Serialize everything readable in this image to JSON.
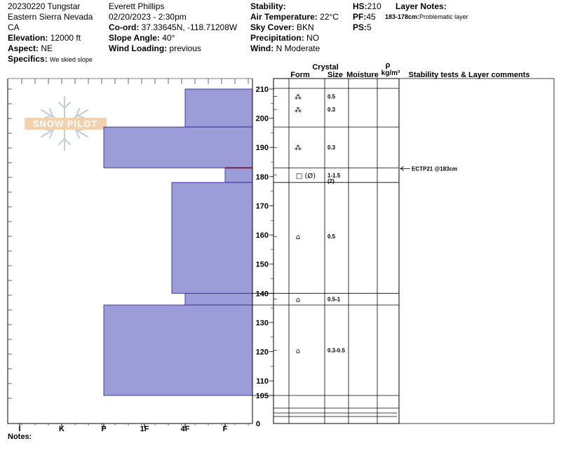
{
  "header": {
    "col1": {
      "line1": "20230220 Tungstar",
      "line2": "Eastern Sierra Nevada",
      "line3": "CA",
      "elevation_label": "Elevation:",
      "elevation_value": "12000 ft",
      "aspect_label": "Aspect:",
      "aspect_value": "NE",
      "specifics_label": "Specifics:",
      "specifics_value": "We skied slope"
    },
    "col2": {
      "observer": "Everett Phillips",
      "datetime": "02/20/2023 - 2:30pm",
      "coord_label": "Co-ord:",
      "coord_value": "37.33645N, -118.71208W",
      "slope_label": "Slope Angle:",
      "slope_value": "40°",
      "wind_loading_label": "Wind Loading:",
      "wind_loading_value": "previous"
    },
    "col3": {
      "stability_label": "Stability:",
      "stability_value": "",
      "air_temp_label": "Air Temperature:",
      "air_temp_value": "22°C",
      "sky_label": "Sky Cover:",
      "sky_value": "BKN",
      "precip_label": "Precipitation:",
      "precip_value": "NO",
      "wind_label": "Wind:",
      "wind_value": "N Moderate"
    },
    "col4": {
      "hs_label": "HS:",
      "hs_value": "210",
      "pf_label": "PF:",
      "pf_value": "45",
      "ps_label": "PS:",
      "ps_value": "5"
    },
    "layer_notes": {
      "title": "Layer Notes:",
      "note_range": "183-178cm:",
      "note_text": "Problematic layer"
    }
  },
  "table_headers": {
    "crystal": "Crystal",
    "form": "Form",
    "size": "Size",
    "moisture": "Moisture",
    "rho": "ρ",
    "density_unit": "kg/m³",
    "comments": "Stability tests & Layer comments"
  },
  "logo_text": "SNOW PILOT",
  "notes_label": "Notes:",
  "colors": {
    "layer_fill": "#9c9cd8",
    "layer_stroke": "#1e1e8c",
    "crust_line": "#8b1a3a",
    "test_arrow": "#000000"
  },
  "chart_data": {
    "type": "bar",
    "title": "",
    "xlabel": "",
    "ylabel": "",
    "hardness_scale": [
      "I",
      "K",
      "P",
      "1F",
      "4F",
      "F"
    ],
    "hardness_axis_note": "hardness increases to the left; F at right edge",
    "ylim": [
      100,
      212
    ],
    "y_ticks": [
      105,
      110,
      120,
      130,
      140,
      150,
      160,
      170,
      180,
      190,
      200,
      210
    ],
    "bottom_label": "0",
    "layers": [
      {
        "top": 210,
        "bottom": 197,
        "hardness": "4F"
      },
      {
        "top": 197,
        "bottom": 183,
        "hardness": "P"
      },
      {
        "top": 183,
        "bottom": 178,
        "hardness": "F+"
      },
      {
        "top": 178,
        "bottom": 140,
        "hardness": "4F+"
      },
      {
        "top": 140,
        "bottom": 136,
        "hardness": "4F"
      },
      {
        "top": 136,
        "bottom": 105,
        "hardness": "P"
      }
    ],
    "crust_line_at": 183,
    "crystals": [
      {
        "height": 207.5,
        "form": "⁂",
        "size": "0.5"
      },
      {
        "height": 203,
        "form": "⁂",
        "size": "0.3"
      },
      {
        "height": 190,
        "form": "⁂",
        "size": "0.3"
      },
      {
        "height": 180.5,
        "form": "□ (Ø)",
        "size": "1-1.5 (2)"
      },
      {
        "height": 159.5,
        "form": "⌂",
        "size": "0.5"
      },
      {
        "height": 138,
        "form": "⌂",
        "size": "0.5-1"
      },
      {
        "height": 120.5,
        "form": "⌂",
        "size": "0.3-0.5"
      }
    ],
    "stability_tests": [
      {
        "height": 183,
        "text": "ECTP21 @183cm"
      }
    ]
  }
}
